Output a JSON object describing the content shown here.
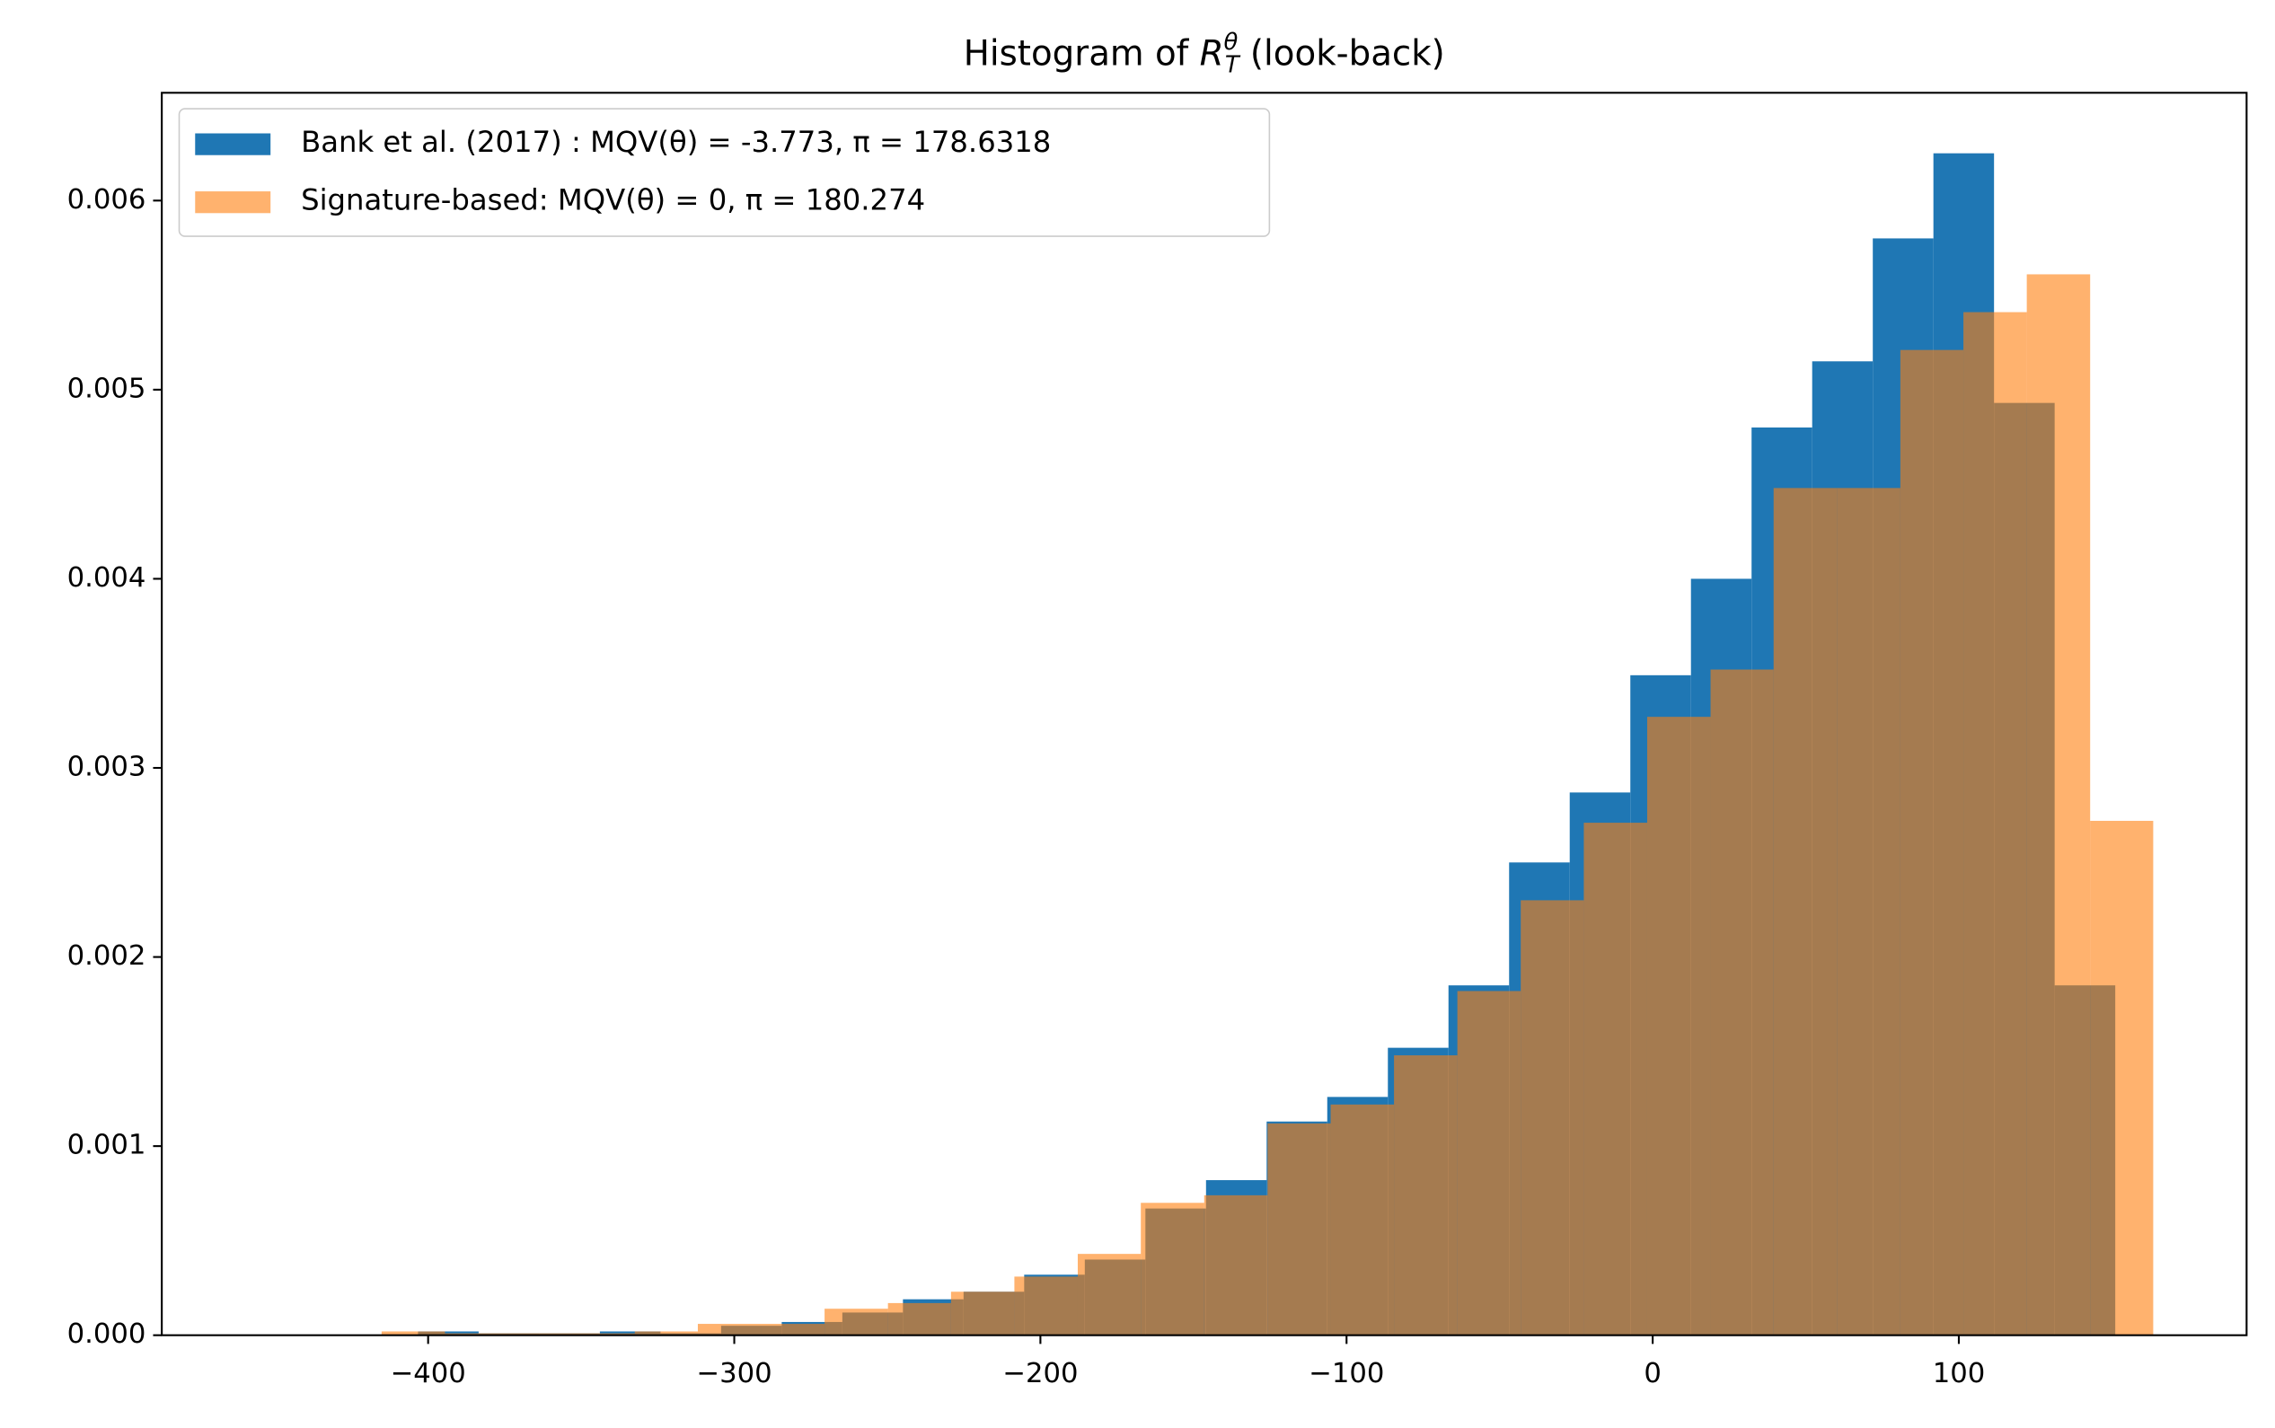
{
  "chart_data": {
    "type": "histogram",
    "title": "Histogram of R_T^θ (look-back)",
    "xlim": [
      -487,
      194
    ],
    "ylim": [
      0,
      0.00657
    ],
    "xticks": [
      {
        "value": -400,
        "label": "−400"
      },
      {
        "value": -300,
        "label": "−300"
      },
      {
        "value": -200,
        "label": "−200"
      },
      {
        "value": -100,
        "label": "−100"
      },
      0,
      100
    ],
    "yticks": [
      {
        "value": 0,
        "label": "0.000"
      },
      {
        "value": 0.001,
        "label": "0.001"
      },
      {
        "value": 0.002,
        "label": "0.002"
      },
      {
        "value": 0.003,
        "label": "0.003"
      },
      {
        "value": 0.004,
        "label": "0.004"
      },
      {
        "value": 0.005,
        "label": "0.005"
      },
      {
        "value": 0.006,
        "label": "0.006"
      }
    ],
    "legend": "upper left",
    "series": [
      {
        "name": "Bank et al. (2017) : MQV(θ) =  -3.773, π = 178.6318",
        "color": "#1f77b4",
        "alpha": 1,
        "bins": [
          -403.3,
          -383.5,
          -363.7,
          -343.9,
          -324.1,
          -304.3,
          -284.5,
          -264.7,
          -244.9,
          -225.1,
          -205.3,
          -185.5,
          -165.7,
          -145.9,
          -126.1,
          -106.3,
          -86.5,
          -66.7,
          -46.9,
          -27.1,
          -7.3,
          12.5,
          32.3,
          52.1,
          71.9,
          91.7,
          111.5,
          131.3,
          151.1
        ],
        "values": [
          2e-05,
          1e-05,
          1e-05,
          2e-05,
          1e-05,
          5e-05,
          7e-05,
          0.00012,
          0.00019,
          0.00023,
          0.00032,
          0.0004,
          0.00067,
          0.00082,
          0.00113,
          0.00126,
          0.00152,
          0.00185,
          0.0025,
          0.00287,
          0.00349,
          0.004,
          0.0048,
          0.00515,
          0.0058,
          0.00625,
          0.00493,
          0.00185
        ]
      },
      {
        "name": "Signature-based: MQV(θ) = 0, π =  180.274",
        "color": "#ff7f0e",
        "alpha": 0.6,
        "bins": [
          -415.2,
          -394.5,
          -373.9,
          -353.2,
          -332.5,
          -311.9,
          -291.2,
          -270.5,
          -249.8,
          -229.2,
          -208.5,
          -187.8,
          -167.2,
          -146.5,
          -125.8,
          -105.2,
          -84.5,
          -63.8,
          -43.1,
          -22.5,
          -1.8,
          18.9,
          39.5,
          60.2,
          80.9,
          101.5,
          122.2,
          142.9,
          163.5
        ],
        "values": [
          2e-05,
          1e-05,
          1e-05,
          1e-05,
          2e-05,
          6e-05,
          6e-05,
          0.00014,
          0.00017,
          0.00023,
          0.00031,
          0.00043,
          0.0007,
          0.00074,
          0.00112,
          0.00122,
          0.00148,
          0.00182,
          0.0023,
          0.00271,
          0.00327,
          0.00352,
          0.00448,
          0.00448,
          0.00521,
          0.00541,
          0.00561,
          0.00272
        ]
      }
    ]
  }
}
